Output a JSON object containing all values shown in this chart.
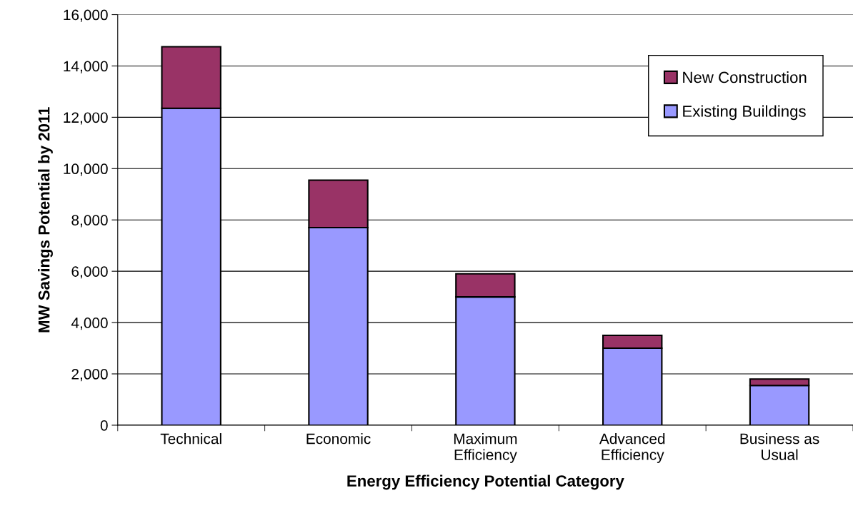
{
  "chart_data": {
    "type": "bar",
    "stacked": true,
    "xlabel": "Energy Efficiency Potential Category",
    "ylabel": "MW Savings Potential by 2011",
    "categories": [
      "Technical",
      "Economic",
      "Maximum\nEfficiency",
      "Advanced\nEfficiency",
      "Business as\nUsual"
    ],
    "series": [
      {
        "name": "Existing Buildings",
        "color": "#9999ff",
        "values": [
          12350,
          7700,
          5000,
          3000,
          1550
        ]
      },
      {
        "name": "New Construction",
        "color": "#993366",
        "values": [
          2400,
          1850,
          900,
          500,
          250
        ]
      }
    ],
    "ylim": [
      0,
      16000
    ],
    "yticks": [
      {
        "value": 0,
        "label": "0"
      },
      {
        "value": 2000,
        "label": "2,000"
      },
      {
        "value": 4000,
        "label": "4,000"
      },
      {
        "value": 6000,
        "label": "6,000"
      },
      {
        "value": 8000,
        "label": "8,000"
      },
      {
        "value": 10000,
        "label": "10,000"
      },
      {
        "value": 12000,
        "label": "12,000"
      },
      {
        "value": 14000,
        "label": "14,000"
      },
      {
        "value": 16000,
        "label": "16,000"
      }
    ],
    "grid": "y",
    "legend": "top right"
  }
}
